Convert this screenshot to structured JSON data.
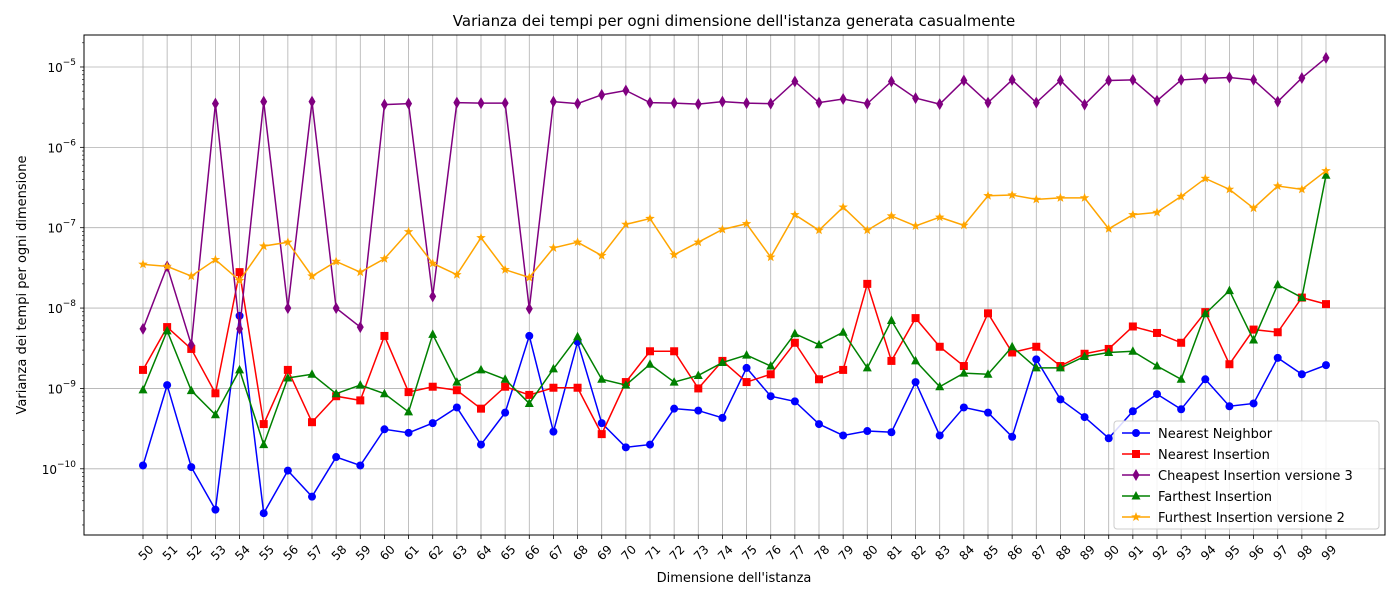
{
  "chart_data": {
    "type": "line",
    "title": "Varianza dei tempi per ogni dimensione dell'istanza generata casualmente",
    "xlabel": "Dimensione dell'istanza",
    "ylabel": "Varianza dei tempi per ogni dimensione",
    "yscale": "log",
    "ylim": [
      1.5e-11,
      2.5e-05
    ],
    "grid": true,
    "legend_position": "lower-right",
    "x": [
      50,
      51,
      52,
      53,
      54,
      55,
      56,
      57,
      58,
      59,
      60,
      61,
      62,
      63,
      64,
      65,
      66,
      67,
      68,
      69,
      70,
      71,
      72,
      73,
      74,
      75,
      76,
      77,
      78,
      79,
      80,
      81,
      82,
      83,
      84,
      85,
      86,
      87,
      88,
      89,
      90,
      91,
      92,
      93,
      94,
      95,
      96,
      97,
      98,
      99
    ],
    "y_ticks": [
      {
        "value": 1e-10,
        "label": "10",
        "exp": "−10"
      },
      {
        "value": 1e-09,
        "label": "10",
        "exp": "−9"
      },
      {
        "value": 1e-08,
        "label": "10",
        "exp": "−8"
      },
      {
        "value": 1e-07,
        "label": "10",
        "exp": "−7"
      },
      {
        "value": 1e-06,
        "label": "10",
        "exp": "−6"
      },
      {
        "value": 1e-05,
        "label": "10",
        "exp": "−5"
      }
    ],
    "series": [
      {
        "name": "Nearest Neighbor",
        "color": "#0000ff",
        "marker": "circle",
        "values": [
          1.1e-10,
          1.1e-09,
          1.05e-10,
          3.1e-11,
          8e-09,
          2.8e-11,
          9.5e-11,
          4.5e-11,
          1.4e-10,
          1.1e-10,
          3.1e-10,
          2.8e-10,
          3.7e-10,
          5.8e-10,
          2e-10,
          5e-10,
          4.5e-09,
          2.9e-10,
          3.8e-09,
          3.7e-10,
          1.85e-10,
          2e-10,
          5.6e-10,
          5.3e-10,
          4.3e-10,
          1.8e-09,
          8e-10,
          6.9e-10,
          3.6e-10,
          2.6e-10,
          2.95e-10,
          2.85e-10,
          1.2e-09,
          2.6e-10,
          5.8e-10,
          5e-10,
          2.5e-10,
          2.3e-09,
          7.3e-10,
          4.4e-10,
          2.4e-10,
          5.2e-10,
          8.5e-10,
          5.5e-10,
          1.3e-09,
          6e-10,
          6.5e-10,
          2.4e-09,
          1.5e-09,
          1.95e-09
        ]
      },
      {
        "name": "Nearest Insertion",
        "color": "#ff0000",
        "marker": "square",
        "values": [
          1.7e-09,
          5.8e-09,
          3.1e-09,
          8.7e-10,
          2.8e-08,
          3.6e-10,
          1.7e-09,
          3.8e-10,
          8e-10,
          7.1e-10,
          4.5e-09,
          9e-10,
          1.05e-09,
          9.5e-10,
          5.6e-10,
          1.05e-09,
          8.3e-10,
          1.02e-09,
          1.02e-09,
          2.7e-10,
          1.2e-09,
          2.9e-09,
          2.9e-09,
          1e-09,
          2.2e-09,
          1.2e-09,
          1.5e-09,
          3.7e-09,
          1.3e-09,
          1.7e-09,
          2e-08,
          2.2e-09,
          7.5e-09,
          3.3e-09,
          1.9e-09,
          8.6e-09,
          2.8e-09,
          3.3e-09,
          1.9e-09,
          2.7e-09,
          3.1e-09,
          5.9e-09,
          4.9e-09,
          3.7e-09,
          8.9e-09,
          2e-09,
          5.4e-09,
          5e-09,
          1.35e-08,
          1.12e-08
        ]
      },
      {
        "name": "Cheapest Insertion versione 3",
        "color": "#800080",
        "marker": "thin_diamond",
        "values": [
          5.5e-09,
          3.3e-08,
          3.5e-09,
          3.5e-06,
          5.5e-09,
          3.7e-06,
          1e-08,
          3.7e-06,
          1e-08,
          5.8e-09,
          3.4e-06,
          3.5e-06,
          1.4e-08,
          3.6e-06,
          3.55e-06,
          3.55e-06,
          9.8e-09,
          3.7e-06,
          3.5e-06,
          4.5e-06,
          5.1e-06,
          3.6e-06,
          3.55e-06,
          3.45e-06,
          3.7e-06,
          3.55e-06,
          3.5e-06,
          6.6e-06,
          3.6e-06,
          4e-06,
          3.5e-06,
          6.6e-06,
          4.1e-06,
          3.45e-06,
          6.8e-06,
          3.6e-06,
          6.9e-06,
          3.6e-06,
          6.8e-06,
          3.4e-06,
          6.8e-06,
          6.9e-06,
          3.8e-06,
          6.9e-06,
          7.2e-06,
          7.4e-06,
          6.9e-06,
          3.7e-06,
          7.3e-06,
          1.3e-05
        ]
      },
      {
        "name": "Farthest Insertion",
        "color": "#008000",
        "marker": "triangle",
        "values": [
          9.6e-10,
          5.2e-09,
          9.4e-10,
          4.7e-10,
          1.7e-09,
          2e-10,
          1.35e-09,
          1.5e-09,
          8.6e-10,
          1.1e-09,
          8.6e-10,
          5.1e-10,
          4.7e-09,
          1.2e-09,
          1.7e-09,
          1.3e-09,
          6.5e-10,
          1.75e-09,
          4.4e-09,
          1.3e-09,
          1.1e-09,
          2e-09,
          1.2e-09,
          1.45e-09,
          2.1e-09,
          2.6e-09,
          1.9e-09,
          4.8e-09,
          3.5e-09,
          5e-09,
          1.8e-09,
          7e-09,
          2.2e-09,
          1.05e-09,
          1.55e-09,
          1.5e-09,
          3.3e-09,
          1.8e-09,
          1.8e-09,
          2.5e-09,
          2.8e-09,
          2.9e-09,
          1.9e-09,
          1.3e-09,
          8.5e-09,
          1.65e-08,
          4e-09,
          1.95e-08,
          1.35e-08,
          4.5e-07
        ]
      },
      {
        "name": "Furthest Insertion versione 2",
        "color": "#ffa500",
        "marker": "star",
        "values": [
          3.5e-08,
          3.3e-08,
          2.5e-08,
          4e-08,
          2.2e-08,
          5.9e-08,
          6.6e-08,
          2.5e-08,
          3.8e-08,
          2.8e-08,
          4.1e-08,
          8.9e-08,
          3.6e-08,
          2.6e-08,
          7.5e-08,
          3e-08,
          2.4e-08,
          5.6e-08,
          6.6e-08,
          4.5e-08,
          1.1e-07,
          1.3e-07,
          4.6e-08,
          6.6e-08,
          9.5e-08,
          1.12e-07,
          4.3e-08,
          1.45e-07,
          9.3e-08,
          1.8e-07,
          9.3e-08,
          1.4e-07,
          1.05e-07,
          1.35e-07,
          1.07e-07,
          2.5e-07,
          2.55e-07,
          2.25e-07,
          2.35e-07,
          2.35e-07,
          9.7e-08,
          1.45e-07,
          1.55e-07,
          2.45e-07,
          4.1e-07,
          3e-07,
          1.75e-07,
          3.3e-07,
          3e-07,
          5.1e-07
        ]
      }
    ]
  }
}
